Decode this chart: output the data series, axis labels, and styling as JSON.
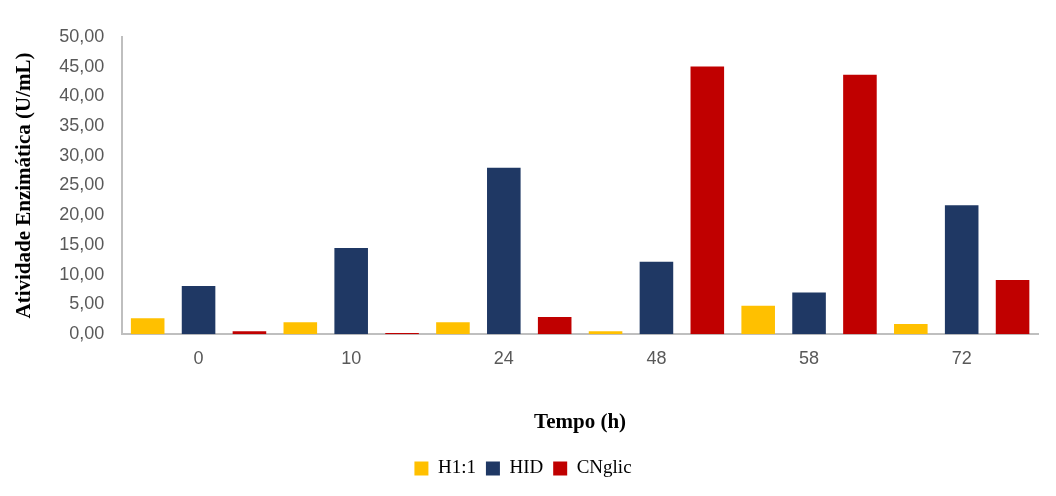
{
  "chart_data": {
    "type": "bar",
    "xlabel": "Tempo (h)",
    "ylabel": "Atividade Enzimática (U/mL)",
    "categories": [
      "0",
      "10",
      "24",
      "48",
      "58",
      "72"
    ],
    "series": [
      {
        "name": "H1:1",
        "color": "#ffc000",
        "values": [
          2.7,
          2.0,
          2.0,
          0.5,
          4.8,
          1.7
        ]
      },
      {
        "name": "HID",
        "color": "#1f3864",
        "values": [
          8.1,
          14.5,
          28.0,
          12.2,
          7.0,
          21.7
        ]
      },
      {
        "name": "CNglic",
        "color": "#c00000",
        "values": [
          0.5,
          0.2,
          2.9,
          45.0,
          43.6,
          9.1
        ]
      }
    ],
    "ylim": [
      0,
      50
    ],
    "yticks": [
      {
        "value": 0,
        "label": "0,00"
      },
      {
        "value": 5,
        "label": "5,00"
      },
      {
        "value": 10,
        "label": "10,00"
      },
      {
        "value": 15,
        "label": "15,00"
      },
      {
        "value": 20,
        "label": "20,00"
      },
      {
        "value": 25,
        "label": "25,00"
      },
      {
        "value": 30,
        "label": "30,00"
      },
      {
        "value": 35,
        "label": "35,00"
      },
      {
        "value": 40,
        "label": "40,00"
      },
      {
        "value": 45,
        "label": "45,00"
      },
      {
        "value": 50,
        "label": "50,00"
      }
    ],
    "grid": false,
    "legend": "bottom"
  }
}
